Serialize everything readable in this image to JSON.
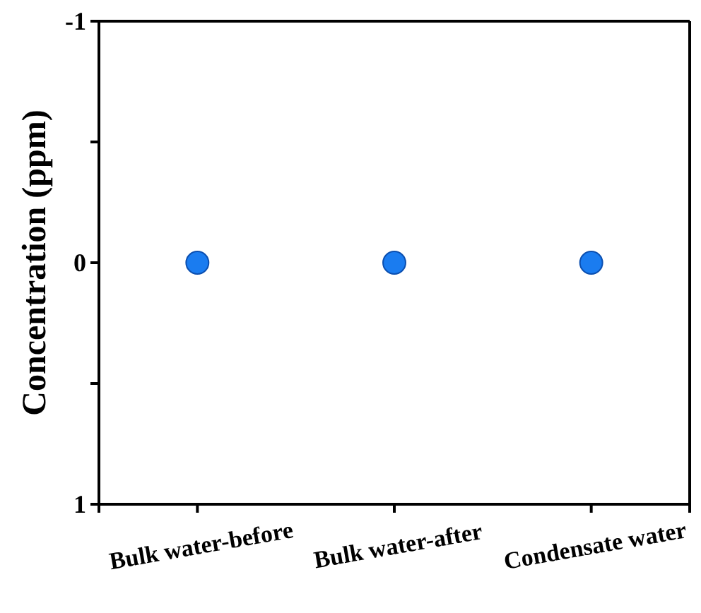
{
  "chart_data": {
    "type": "scatter",
    "ylabel": "Concentration (ppm)",
    "categories": [
      "Bulk water-before",
      "Bulk water-after",
      "Condensate water"
    ],
    "series": [
      {
        "color": "#1a7cf0",
        "values": [
          0,
          0,
          0
        ]
      }
    ],
    "ylim": [
      1,
      -1
    ],
    "yticks": [
      -1,
      {
        "value": -0.5,
        "label": null
      },
      0,
      {
        "value": 0.5,
        "label": null
      },
      1
    ],
    "marker": "circle",
    "grid": false
  }
}
